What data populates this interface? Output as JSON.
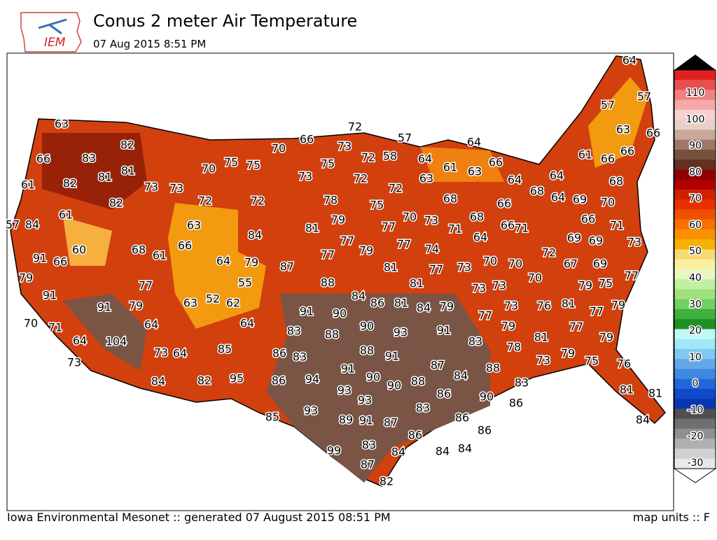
{
  "header": {
    "logo": "IEM",
    "title": "Conus 2 meter Air Temperature",
    "timestamp": "07 Aug 2015 8:51 PM"
  },
  "colorbar": {
    "ticks": [
      110,
      100,
      90,
      80,
      70,
      60,
      50,
      40,
      30,
      20,
      10,
      0,
      -10,
      -20,
      -30
    ]
  },
  "stations": [
    63,
    66,
    83,
    82,
    61,
    82,
    81,
    81,
    73,
    73,
    70,
    75,
    75,
    70,
    66,
    72,
    73,
    75,
    72,
    58,
    57,
    64,
    64,
    61,
    63,
    66,
    64,
    57,
    64,
    57,
    63,
    66,
    61,
    66,
    66,
    64,
    68,
    68,
    64,
    69,
    70,
    71,
    66,
    73,
    69,
    69,
    72,
    67,
    69,
    77,
    75,
    79,
    81,
    77,
    79,
    77,
    79,
    76,
    70,
    71,
    66,
    66,
    70,
    70,
    73,
    73,
    64,
    68,
    68,
    63,
    72,
    75,
    70,
    73,
    71,
    77,
    77,
    74,
    77,
    73,
    79,
    77,
    79,
    78,
    72,
    73,
    72,
    72,
    63,
    84,
    81,
    77,
    87,
    88,
    84,
    86,
    81,
    81,
    81,
    84,
    79,
    77,
    73,
    79,
    78,
    81,
    79,
    75,
    76,
    73,
    83,
    88,
    83,
    91,
    93,
    90,
    91,
    90,
    83,
    88,
    88,
    91,
    87,
    84,
    88,
    86,
    90,
    86,
    86,
    86,
    83,
    86,
    84,
    84,
    84,
    83,
    87,
    82,
    99,
    89,
    91,
    87,
    93,
    90,
    90,
    91,
    93,
    94,
    93,
    85,
    86,
    95,
    82,
    85,
    83,
    86,
    64,
    62,
    52,
    63,
    55,
    79,
    64,
    84,
    73,
    64,
    64,
    79,
    77,
    68,
    61,
    66,
    60,
    66,
    91,
    61,
    84,
    57,
    82,
    79,
    91,
    91,
    70,
    71,
    64,
    104,
    73,
    81,
    81,
    84
  ],
  "footer": {
    "credit": "Iowa Environmental Mesonet :: generated 07 August 2015 08:51 PM",
    "units": "map units :: F"
  }
}
